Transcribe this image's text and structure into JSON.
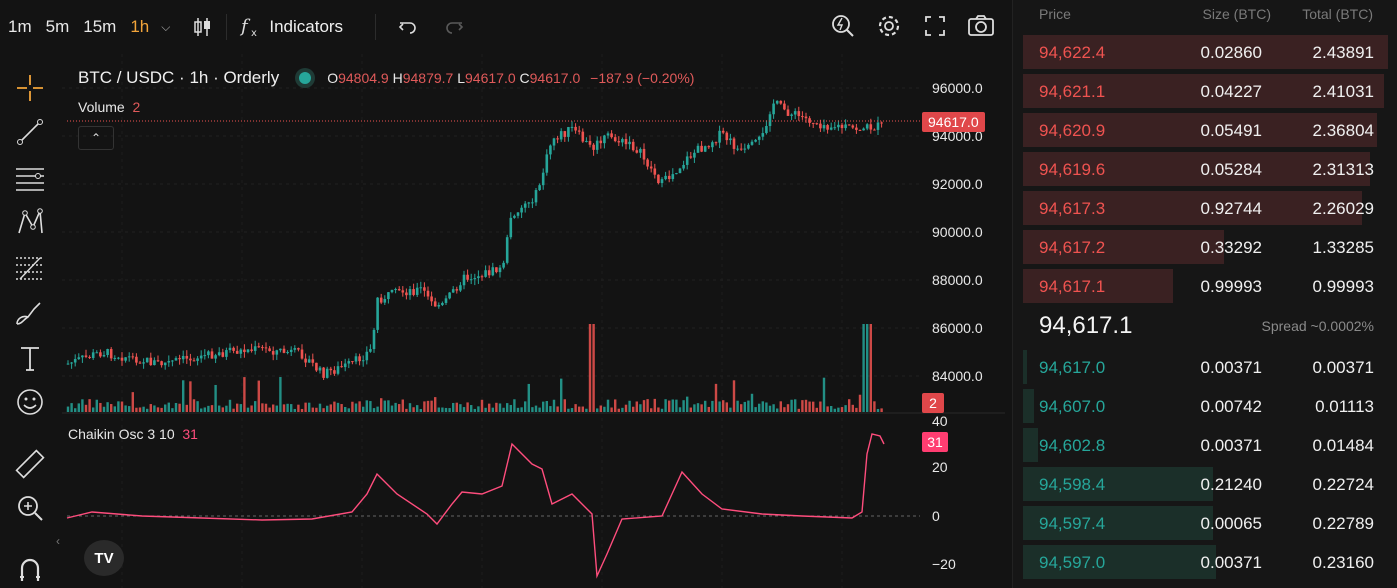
{
  "toolbar": {
    "timeframes": [
      "1m",
      "5m",
      "15m",
      "1h"
    ],
    "active_timeframe": "1h",
    "indicators_label": "Indicators"
  },
  "chart": {
    "symbol_title": "BTC / USDC · 1h · Orderly",
    "ohlc": {
      "o_label": "O",
      "o": "94804.9",
      "h_label": "H",
      "h": "94879.7",
      "l_label": "L",
      "l": "94617.0",
      "c_label": "C",
      "c": "94617.0",
      "change": "−187.9 (−0.20%)"
    },
    "volume_label": "Volume",
    "volume_value": "2",
    "osc_label": "Chaikin Osc 3 10",
    "osc_value": "31",
    "price_axis": [
      "96000.0",
      "94000.0",
      "92000.0",
      "90000.0",
      "88000.0",
      "86000.0",
      "84000.0"
    ],
    "current_price_tag": "94617.0",
    "volume_tag": "2",
    "osc_axis_top": "40",
    "osc_axis": [
      "20",
      "0",
      "−20"
    ],
    "osc_tag": "31",
    "logo": "TV",
    "colors": {
      "up": "#26a69a",
      "down": "#ef5350",
      "osc": "#ff4d7d"
    }
  },
  "orderbook": {
    "headers": {
      "price": "Price",
      "size": "Size (BTC)",
      "total": "Total (BTC)"
    },
    "asks": [
      {
        "price": "94,622.4",
        "size": "0.02860",
        "total": "2.43891",
        "depth": 1.0
      },
      {
        "price": "94,621.1",
        "size": "0.04227",
        "total": "2.41031",
        "depth": 0.99
      },
      {
        "price": "94,620.9",
        "size": "0.05491",
        "total": "2.36804",
        "depth": 0.97
      },
      {
        "price": "94,619.6",
        "size": "0.05284",
        "total": "2.31313",
        "depth": 0.95
      },
      {
        "price": "94,617.3",
        "size": "0.92744",
        "total": "2.26029",
        "depth": 0.93
      },
      {
        "price": "94,617.2",
        "size": "0.33292",
        "total": "1.33285",
        "depth": 0.55
      },
      {
        "price": "94,617.1",
        "size": "0.99993",
        "total": "0.99993",
        "depth": 0.41
      }
    ],
    "mid_price": "94,617.1",
    "spread": "Spread ~0.0002%",
    "bids": [
      {
        "price": "94,617.0",
        "size": "0.00371",
        "total": "0.00371",
        "depth": 0.01
      },
      {
        "price": "94,607.0",
        "size": "0.00742",
        "total": "0.01113",
        "depth": 0.03
      },
      {
        "price": "94,602.8",
        "size": "0.00371",
        "total": "0.01484",
        "depth": 0.04
      },
      {
        "price": "94,598.4",
        "size": "0.21240",
        "total": "0.22724",
        "depth": 0.52
      },
      {
        "price": "94,597.4",
        "size": "0.00065",
        "total": "0.22789",
        "depth": 0.52
      },
      {
        "price": "94,597.0",
        "size": "0.00371",
        "total": "0.23160",
        "depth": 0.53
      }
    ]
  }
}
